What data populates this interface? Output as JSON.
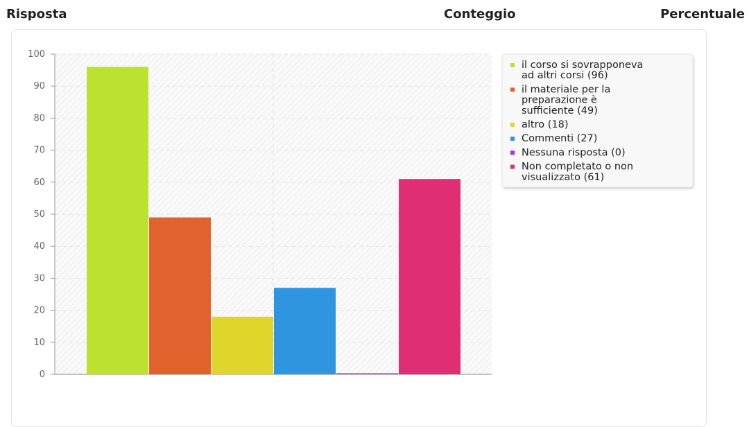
{
  "header": {
    "col_response": "Risposta",
    "col_count": "Conteggio",
    "col_percent": "Percentuale"
  },
  "chart_data": {
    "type": "bar",
    "ylim": [
      0,
      100
    ],
    "yticks": [
      0,
      10,
      20,
      30,
      40,
      50,
      60,
      70,
      80,
      90,
      100
    ],
    "grid": true,
    "legend_position": "right",
    "series": [
      {
        "name": "il corso si sovrapponeva ad altri corsi (96)",
        "legend_lines": [
          "il corso si sovrapponeva",
          "ad altri corsi (96)"
        ],
        "value": 96,
        "color": "#bce12f"
      },
      {
        "name": "il materiale per la preparazione è sufficiente (49)",
        "legend_lines": [
          "il materiale per la",
          "preparazione è",
          "sufficiente (49)"
        ],
        "value": 49,
        "color": "#e0632e"
      },
      {
        "name": "altro (18)",
        "legend_lines": [
          "altro (18)"
        ],
        "value": 18,
        "color": "#e0d52b"
      },
      {
        "name": "Commenti (27)",
        "legend_lines": [
          "Commenti (27)"
        ],
        "value": 27,
        "color": "#2e95de"
      },
      {
        "name": "Nessuna risposta (0)",
        "legend_lines": [
          "Nessuna risposta (0)"
        ],
        "value": 0,
        "color": "#b02ee0"
      },
      {
        "name": "Non completato o non visualizzato (61)",
        "legend_lines": [
          "Non completato o non",
          "visualizzato (61)"
        ],
        "value": 61,
        "color": "#e02e75"
      }
    ]
  }
}
